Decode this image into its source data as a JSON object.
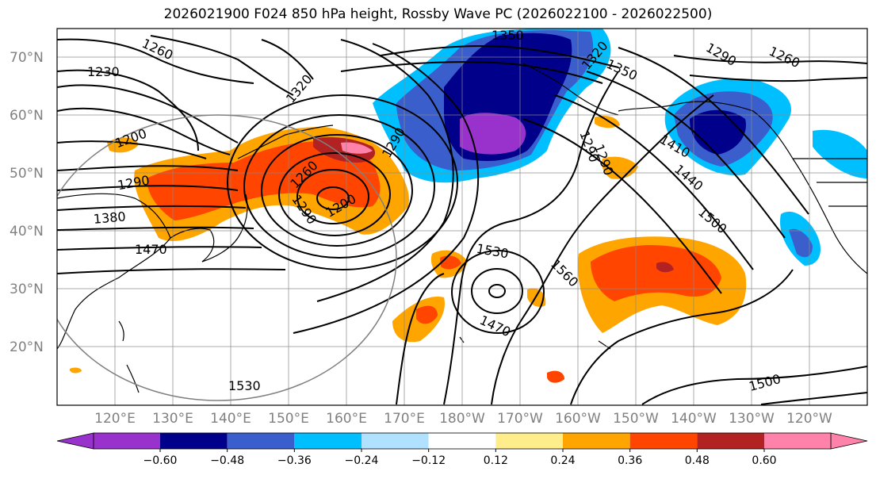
{
  "title": "2026021900 F024 850 hPa height, Rossby Wave PC (2026022100 - 2026022500)",
  "lat_labels": [
    "70°N",
    "60°N",
    "50°N",
    "40°N",
    "30°N",
    "20°N"
  ],
  "lon_labels": [
    "120°E",
    "130°E",
    "140°E",
    "150°E",
    "160°E",
    "170°E",
    "180°W",
    "170°W",
    "160°W",
    "150°W",
    "140°W",
    "130°W",
    "120°W"
  ],
  "colorbar": {
    "ticks": [
      "−0.60",
      "−0.48",
      "−0.36",
      "−0.24",
      "−0.12",
      "0.12",
      "0.24",
      "0.36",
      "0.48",
      "0.60"
    ],
    "colors": [
      "#9932cc",
      "#00008b",
      "#3a5fcd",
      "#00bfff",
      "#b0e2ff",
      "#ffffff",
      "#ffec8b",
      "#ffa500",
      "#ff4500",
      "#b22222",
      "#ff82ab"
    ]
  },
  "contour_labels": [
    "1230",
    "1260",
    "1320",
    "1350",
    "1320",
    "1290",
    "1260",
    "1200",
    "1290",
    "1380",
    "1470",
    "1260",
    "1290",
    "1200",
    "1290",
    "1350",
    "1410",
    "1440",
    "1500",
    "1530",
    "1560",
    "1470",
    "1530",
    "1500",
    "1290",
    "1290"
  ]
}
